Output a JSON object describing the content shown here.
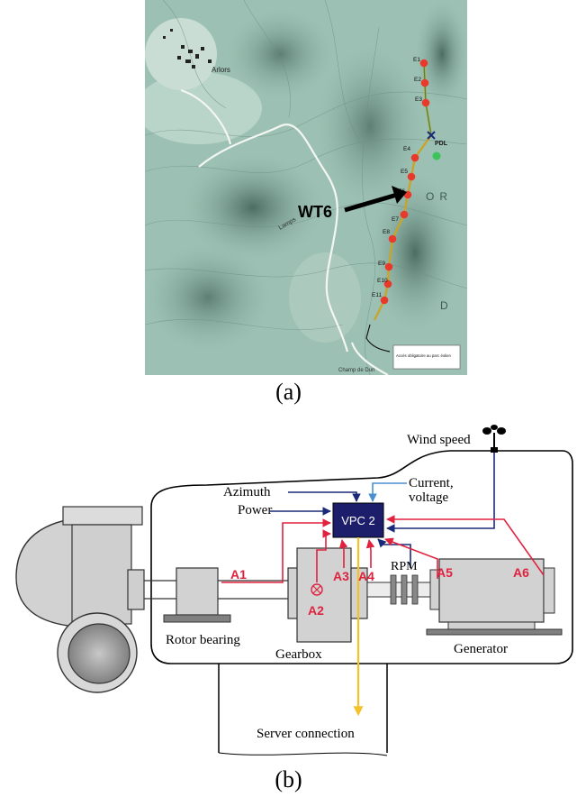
{
  "panel_a": {
    "caption": "(a)",
    "marker_color": "#e8392a",
    "substation_color": "#3cc45a",
    "route_color": "#c8a42a",
    "turbines": [
      "E1",
      "E2",
      "E3",
      "E4",
      "E5",
      "E6",
      "E7",
      "E8",
      "E9",
      "E10",
      "E11"
    ],
    "highlight_label": "WT6",
    "substation_label": "PDL",
    "town_label": "Arlors",
    "map_word_or": "OR",
    "map_word_d": "D",
    "map_word_lamps": "Lamps",
    "legend_note": "Accès obligatoire au parc éolien",
    "bottom_label": "Champ de Dun"
  },
  "panel_b": {
    "caption": "(b)",
    "controller_label": "VPC 2",
    "controller_color": "#1c1e6b",
    "signal_color": "#e0223f",
    "control_line_color": "#1b2a78",
    "current_line_color": "#4a8fd0",
    "server_line_color": "#f5c12a",
    "labels": {
      "wind_speed": "Wind speed",
      "current_voltage_line1": "Current,",
      "current_voltage_line2": "voltage",
      "azimuth": "Azimuth",
      "power": "Power",
      "rpm": "RPM",
      "rotor_bearing": "Rotor bearing",
      "gearbox": "Gearbox",
      "generator": "Generator",
      "server_connection": "Server connection"
    },
    "sensors": [
      "A1",
      "A2",
      "A3",
      "A4",
      "A5",
      "A6"
    ]
  }
}
